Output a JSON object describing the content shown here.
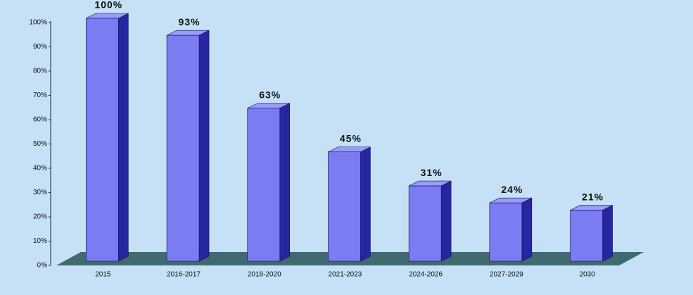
{
  "chart_data": {
    "type": "bar3d",
    "categories": [
      "2015",
      "2016-2017",
      "2018-2020",
      "2021-2023",
      "2024-2026",
      "2027-2029",
      "2030"
    ],
    "values": [
      100,
      93,
      63,
      45,
      31,
      24,
      21
    ],
    "value_labels": [
      "100%",
      "93%",
      "63%",
      "45%",
      "31%",
      "24%",
      "21%"
    ],
    "color": "#7b7bf2",
    "ylim": [
      0,
      100
    ],
    "yticks": [
      {
        "value": 0,
        "label": "0%"
      },
      {
        "value": 10,
        "label": "10%"
      },
      {
        "value": 20,
        "label": "20%"
      },
      {
        "value": 30,
        "label": "30%"
      },
      {
        "value": 40,
        "label": "40%"
      },
      {
        "value": 50,
        "label": "50%"
      },
      {
        "value": 60,
        "label": "60%"
      },
      {
        "value": 70,
        "label": "70%"
      },
      {
        "value": 80,
        "label": "80%"
      },
      {
        "value": 90,
        "label": "90%"
      },
      {
        "value": 100,
        "label": "100%"
      }
    ],
    "grid": false
  }
}
